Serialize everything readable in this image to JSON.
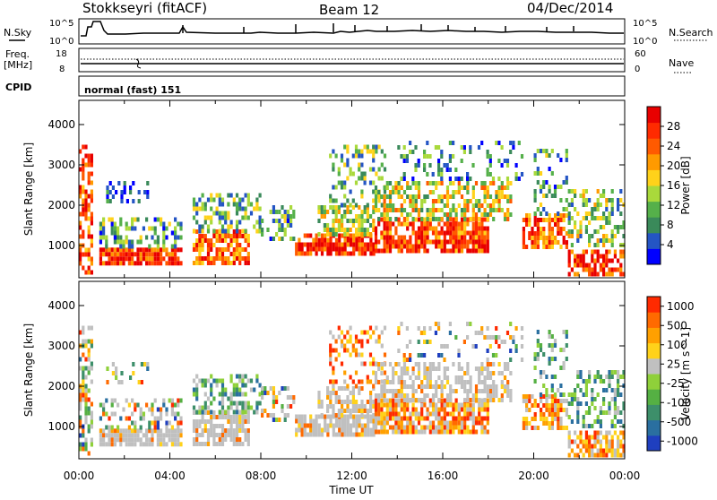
{
  "header": {
    "station": "Stokkseyri (fitACF)",
    "beam": "Beam 12",
    "date": "04/Dec/2014"
  },
  "strip_labels": {
    "nsky": "N.Sky",
    "nsky_top": "10^5",
    "nsky_bottom": "10^0",
    "nsearch": "N.Search",
    "nsearch_top": "10^5",
    "nsearch_bottom": "10^0",
    "freq_label_1": "Freq.",
    "freq_label_2": "[MHz]",
    "freq_top": "18",
    "freq_bottom": "8",
    "nave": "Nave",
    "nave_top": "60",
    "nave_bottom": "0",
    "cpid": "CPID",
    "cpid_value": "normal (fast) 151"
  },
  "chart_data": [
    {
      "type": "heatmap",
      "panel": "power",
      "ylabel": "Slant Range [km]",
      "yticks": [
        "1000",
        "2000",
        "3000",
        "4000"
      ],
      "ylim": [
        200,
        4600
      ],
      "xlim_hours": [
        0,
        24
      ],
      "colorbar": {
        "label": "Power [dB]",
        "ticks": [
          "4",
          "8",
          "12",
          "16",
          "20",
          "24",
          "28"
        ],
        "range": [
          0,
          32
        ],
        "colors": [
          "#0000ff",
          "#2455c4",
          "#3a8a5a",
          "#55b04a",
          "#a9d93b",
          "#ffd21a",
          "#ff9a00",
          "#ff5a00",
          "#ff2a00",
          "#e80000"
        ]
      }
    },
    {
      "type": "heatmap",
      "panel": "velocity",
      "ylabel": "Slant Range [km]",
      "yticks": [
        "1000",
        "2000",
        "3000",
        "4000"
      ],
      "ylim": [
        200,
        4600
      ],
      "xlim_hours": [
        0,
        24
      ],
      "ground_scatter_color": "#c0c0c0",
      "colorbar": {
        "label": "Velocity [m s^-1]",
        "ticks": [
          "1000",
          "500",
          "100",
          "25",
          "-25",
          "-100",
          "-500",
          "-1000"
        ],
        "colors": [
          "#1f3fbf",
          "#2a6fa0",
          "#3d8f6a",
          "#55b043",
          "#8fd03a",
          "#c0c0c0",
          "#ffd21a",
          "#ffa000",
          "#ff6a00",
          "#ff2a00"
        ]
      }
    }
  ],
  "time_axis": {
    "ticks": [
      "00:00",
      "04:00",
      "08:00",
      "12:00",
      "16:00",
      "20:00",
      "00:00"
    ],
    "label": "Time UT"
  }
}
